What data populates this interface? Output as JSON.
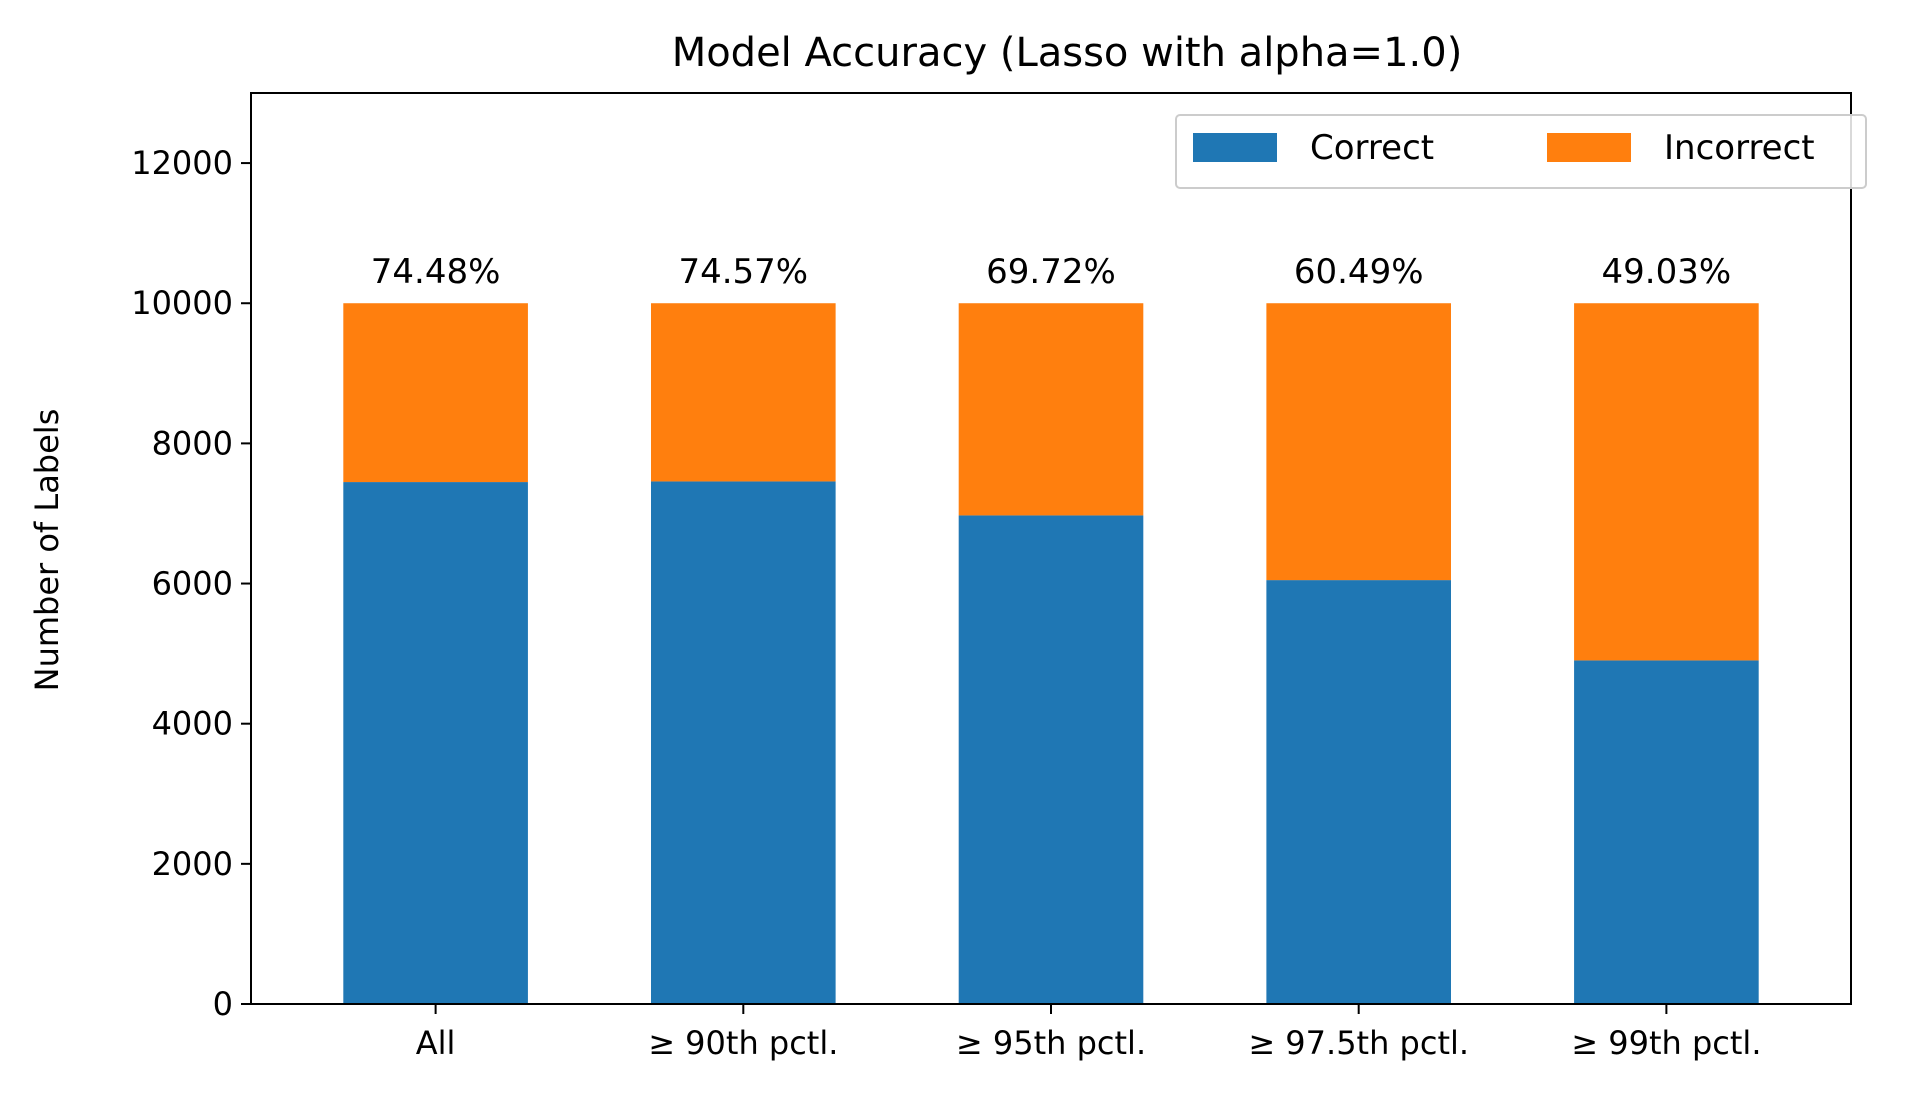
{
  "chart_data": {
    "type": "bar",
    "stacked": true,
    "title": "Model Accuracy (Lasso with alpha=1.0)",
    "xlabel": "",
    "ylabel": "Number of Labels",
    "ylim": [
      0,
      13000
    ],
    "yticks": [
      0,
      2000,
      4000,
      6000,
      8000,
      10000,
      12000
    ],
    "ytick_labels": [
      "0",
      "2000",
      "4000",
      "6000",
      "8000",
      "10000",
      "12000"
    ],
    "categories": [
      "All",
      "≥ 90th pctl.",
      "≥ 95th pctl.",
      "≥ 97.5th pctl.",
      "≥ 99th pctl."
    ],
    "series": [
      {
        "name": "Correct",
        "color": "#1f77b4",
        "values": [
          7448,
          7457,
          6972,
          6049,
          4903
        ]
      },
      {
        "name": "Incorrect",
        "color": "#ff7f0e",
        "values": [
          2552,
          2543,
          3028,
          3951,
          5097
        ]
      }
    ],
    "data_labels": [
      "74.48%",
      "74.57%",
      "69.72%",
      "60.49%",
      "49.03%"
    ],
    "grid": false,
    "legend": {
      "position": "top-right",
      "columns": 2
    }
  }
}
